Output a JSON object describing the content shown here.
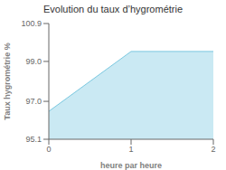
{
  "chart_data": {
    "type": "area",
    "title": "Evolution du taux d’hygrométrie",
    "xlabel": "heure par heure",
    "ylabel": "Taux hygrométrie %",
    "x": [
      0,
      1,
      2
    ],
    "values": [
      96.5,
      99.5,
      99.5
    ],
    "xlim": [
      0,
      2
    ],
    "ylim": [
      95.1,
      100.9
    ],
    "xticks": [
      0,
      1,
      2
    ],
    "yticks": [
      95.1,
      {
        "value": 97.0,
        "label": "97.0"
      },
      {
        "value": 99.0,
        "label": "99.0"
      },
      100.9
    ],
    "color": "#7ac8e0",
    "grid": false
  }
}
